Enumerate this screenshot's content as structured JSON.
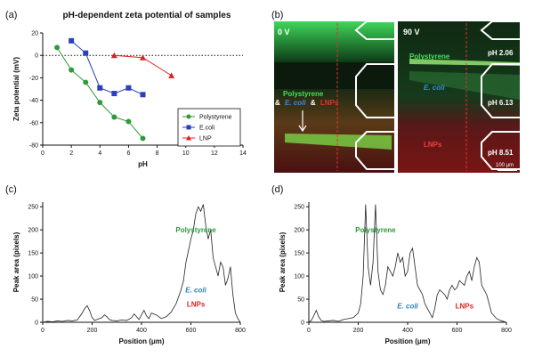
{
  "panels": {
    "a": "(a)",
    "b": "(b)",
    "c": "(c)",
    "d": "(d)"
  },
  "chart_data": [
    {
      "panel": "a",
      "type": "scatter",
      "title": "pH-dependent zeta potential of samples",
      "xlabel": "pH",
      "ylabel": "Zeta potential (mV)",
      "xlim": [
        0,
        14
      ],
      "ylim": [
        -80,
        20
      ],
      "xticks": [
        0,
        2,
        4,
        6,
        8,
        10,
        12,
        14
      ],
      "yticks": [
        20,
        0,
        -20,
        -40,
        -60,
        -80
      ],
      "legend_position": "bottom-right",
      "zero_line": "dotted",
      "series": [
        {
          "name": "Polystyrene",
          "color": "#2e9a3a",
          "marker": "circle",
          "x": [
            1,
            2,
            3,
            4,
            5,
            6,
            7
          ],
          "y": [
            7,
            -13,
            -24,
            -42,
            -55,
            -59,
            -74
          ]
        },
        {
          "name": "E.coli",
          "color": "#2b3fbf",
          "marker": "square",
          "x": [
            2,
            3,
            4,
            5,
            6,
            7
          ],
          "y": [
            13,
            2,
            -29,
            -34,
            -29,
            -35
          ]
        },
        {
          "name": "LNP",
          "color": "#e02020",
          "marker": "triangle",
          "x": [
            5,
            7,
            9
          ],
          "y": [
            0,
            -2,
            -18
          ]
        }
      ]
    },
    {
      "panel": "c",
      "type": "line",
      "xlabel": "Position (μm)",
      "ylabel": "Peak area (pixels)",
      "xlim": [
        0,
        800
      ],
      "ylim": [
        0,
        260
      ],
      "xticks": [
        0,
        200,
        400,
        600,
        800
      ],
      "yticks": [
        0,
        50,
        100,
        150,
        200,
        250
      ],
      "annotations": [
        {
          "text": "Polystyrene",
          "color": "#2e9a3a",
          "x": 620,
          "y": 195
        },
        {
          "text": "E. coli",
          "color": "#2b7fc0",
          "x": 620,
          "y": 65,
          "italic": true
        },
        {
          "text": "LNPs",
          "color": "#e02020",
          "x": 620,
          "y": 34
        }
      ],
      "x": [
        0,
        20,
        40,
        60,
        80,
        100,
        120,
        140,
        160,
        170,
        180,
        190,
        200,
        210,
        220,
        240,
        250,
        260,
        270,
        280,
        300,
        320,
        340,
        360,
        370,
        380,
        390,
        400,
        410,
        420,
        430,
        440,
        460,
        480,
        500,
        520,
        540,
        560,
        570,
        580,
        590,
        600,
        610,
        620,
        630,
        640,
        650,
        660,
        670,
        680,
        690,
        700,
        710,
        720,
        730,
        740,
        750,
        760,
        770,
        780,
        790,
        800
      ],
      "y": [
        0,
        2,
        1,
        3,
        2,
        4,
        3,
        5,
        20,
        30,
        36,
        25,
        10,
        4,
        6,
        10,
        16,
        12,
        6,
        4,
        3,
        5,
        4,
        10,
        18,
        12,
        6,
        16,
        26,
        14,
        8,
        20,
        16,
        8,
        12,
        22,
        40,
        70,
        90,
        130,
        155,
        180,
        200,
        235,
        250,
        240,
        255,
        210,
        180,
        200,
        140,
        120,
        100,
        130,
        120,
        80,
        95,
        120,
        60,
        20,
        8,
        0
      ]
    },
    {
      "panel": "d",
      "type": "line",
      "xlabel": "Position (μm)",
      "ylabel": "Peak area (pixels)",
      "xlim": [
        0,
        800
      ],
      "ylim": [
        0,
        260
      ],
      "xticks": [
        0,
        200,
        400,
        600,
        800
      ],
      "yticks": [
        0,
        50,
        100,
        150,
        200,
        250
      ],
      "annotations": [
        {
          "text": "Polystyrene",
          "color": "#2e9a3a",
          "x": 270,
          "y": 195
        },
        {
          "text": "E. coli",
          "color": "#2b7fc0",
          "x": 400,
          "y": 30,
          "italic": true
        },
        {
          "text": "LNPs",
          "color": "#e02020",
          "x": 630,
          "y": 30
        }
      ],
      "x": [
        0,
        10,
        20,
        30,
        40,
        50,
        60,
        80,
        100,
        120,
        140,
        160,
        180,
        200,
        210,
        220,
        230,
        240,
        250,
        260,
        270,
        280,
        290,
        300,
        310,
        320,
        330,
        340,
        350,
        360,
        370,
        380,
        390,
        400,
        410,
        420,
        430,
        440,
        450,
        460,
        470,
        480,
        490,
        500,
        510,
        520,
        530,
        540,
        550,
        560,
        570,
        580,
        590,
        600,
        610,
        620,
        630,
        640,
        650,
        660,
        670,
        680,
        690,
        700,
        710,
        720,
        730,
        740,
        760,
        780,
        800
      ],
      "y": [
        0,
        4,
        14,
        26,
        12,
        4,
        2,
        3,
        4,
        2,
        6,
        8,
        10,
        20,
        40,
        100,
        255,
        120,
        80,
        130,
        255,
        110,
        70,
        60,
        80,
        120,
        110,
        100,
        120,
        150,
        130,
        140,
        100,
        110,
        150,
        160,
        120,
        80,
        70,
        60,
        40,
        30,
        20,
        10,
        30,
        60,
        70,
        65,
        60,
        50,
        70,
        80,
        70,
        75,
        90,
        85,
        80,
        100,
        110,
        90,
        120,
        140,
        130,
        80,
        70,
        60,
        40,
        20,
        8,
        3,
        0
      ]
    }
  ],
  "micrograph": {
    "left": {
      "voltage": "0 V",
      "label_polystyrene": "Polystyrene",
      "label_amp1": "&",
      "label_ecoli": "E. coli",
      "label_amp2": "&",
      "label_lnps": "LNPs"
    },
    "right": {
      "voltage": "90 V",
      "label_polystyrene": "Polystyrene",
      "label_ecoli": "E. coli",
      "label_lnps": "LNPs",
      "ph1": "pH 2.06",
      "ph2": "pH 6.13",
      "ph3": "pH 8.51",
      "scalebar": "100 μm"
    }
  }
}
